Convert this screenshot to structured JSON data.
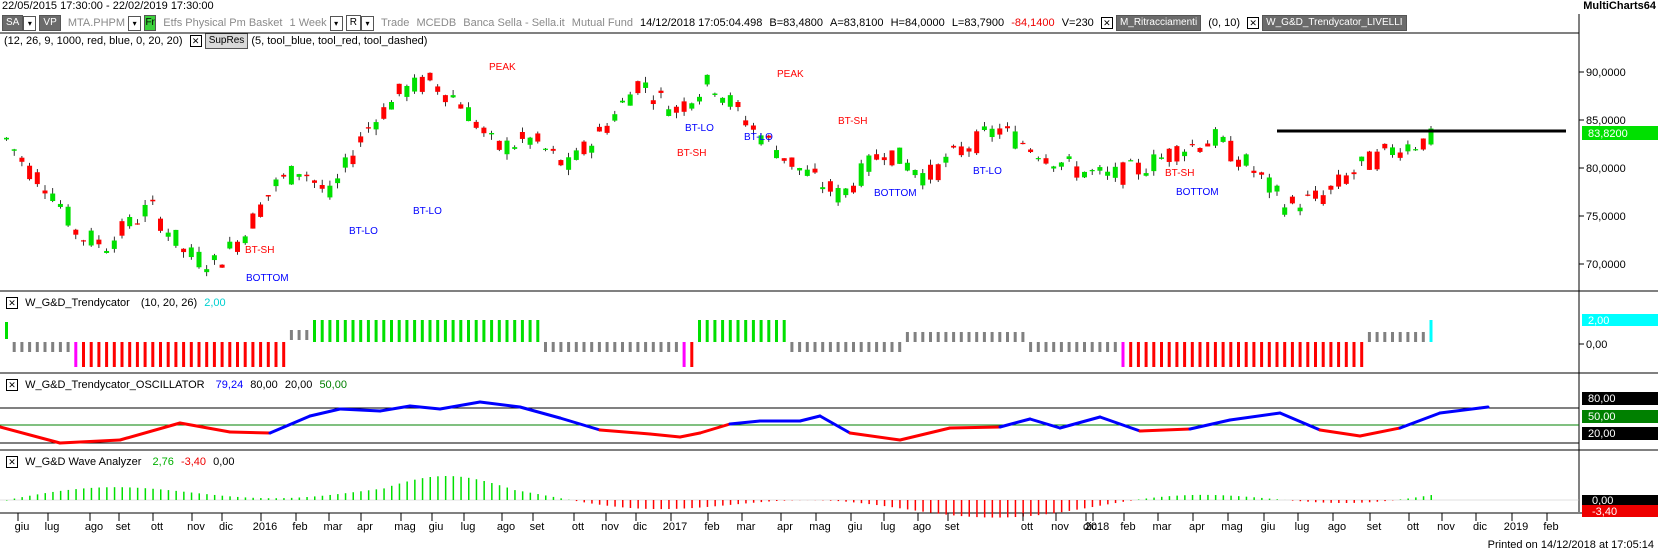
{
  "header": {
    "date_range": "22/05/2015 17:30:00 - 22/02/2019 17:30:00",
    "app_name": "MultiCharts64"
  },
  "toolbar": {
    "sa_label": "SA",
    "vp_label": "VP",
    "symbol": "MTA.PHPM",
    "fr_label": "Fr",
    "description": "Etfs Physical Pm Basket",
    "interval": "1 Week",
    "r_label": "R",
    "trade": "Trade",
    "exchange": "MCEDB",
    "broker": "Banca Sella - Sella.it",
    "fund": "Mutual Fund",
    "quote_time": "14/12/2018 17:05:04.498",
    "bid": "B=83,4800",
    "ask": "A=83,8100",
    "high": "H=84,0000",
    "low": "L=83,7900",
    "change": "-84,1400",
    "volume": "V=230",
    "study1_name": "M_Ritracciamenti",
    "study1_params": "(0, 10)",
    "study2_name": "W_G&D_Trendycator_LIVELLI"
  },
  "toolbar2": {
    "params": "(12, 26, 9, 1000, red, blue, 0, 20, 20)",
    "study_name": "SupRes",
    "study_params": "(5, tool_blue, tool_red, tool_dashed)"
  },
  "price_axis": {
    "ticks": [
      "90,0000",
      "85,0000",
      "80,0000",
      "75,0000",
      "70,0000"
    ],
    "last_price": "83,8200"
  },
  "price_labels": [
    "PEAK",
    "PEAK",
    "BT-SH",
    "BOTTOM",
    "BT-LO",
    "BT-LO",
    "BT-SH",
    "BT-LO",
    "BT-LO",
    "BT-SH",
    "BOTTOM",
    "BT-LO",
    "BT-SH",
    "BOTTOM"
  ],
  "panel_trendycator": {
    "title": "W_G&D_Trendycator",
    "params": "(10, 20, 26)",
    "value": "2,00",
    "axis_tick": "0,00",
    "axis_value": "2,00"
  },
  "panel_oscillator": {
    "title": "W_G&D_Trendycator_OSCILLATOR",
    "value": "79,24",
    "level_high": "80,00",
    "level_low": "20,00",
    "level_mid": "50,00",
    "axis_labels": [
      "80,00",
      "50,00",
      "20,00"
    ]
  },
  "panel_wave": {
    "title": "W_G&D Wave Analyzer",
    "value_pos": "2,76",
    "value_neg": "-3,40",
    "value_zero": "0,00",
    "axis_labels": [
      "0,00",
      "-3,40"
    ]
  },
  "time_axis": {
    "labels": [
      "giu",
      "lug",
      "ago",
      "set",
      "ott",
      "nov",
      "dic",
      "2016",
      "feb",
      "mar",
      "apr",
      "mag",
      "giu",
      "lug",
      "ago",
      "set",
      "ott",
      "nov",
      "dic",
      "2017",
      "feb",
      "mar",
      "apr",
      "mag",
      "giu",
      "lug",
      "ago",
      "set",
      "ott",
      "nov",
      "dic",
      "2018",
      "feb",
      "mar",
      "apr",
      "mag",
      "giu",
      "lug",
      "ago",
      "set",
      "ott",
      "nov",
      "dic",
      "2019",
      "feb"
    ]
  },
  "footer": {
    "printed": "Printed on 14/12/2018 at 17:05:14"
  },
  "colors": {
    "up": "#00e000",
    "down": "#ff0000",
    "blue": "#0000ff",
    "grey": "#808080",
    "magenta": "#ff00ff",
    "cyan": "#00ffff"
  }
}
